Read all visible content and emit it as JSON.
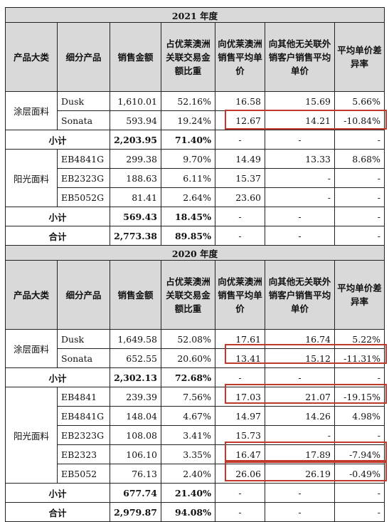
{
  "headers": {
    "category": "产品大类",
    "subproduct": "细分产品",
    "sales": "销售金额",
    "share": "占优莱澳洲关联交易金额比重",
    "related_price": "向优莱澳洲销售平均单价",
    "other_price": "向其他无关联外销客户销售平均单价",
    "diff": "平均单价差异率"
  },
  "y2021": {
    "year": "2021 年度",
    "coated": {
      "name": "涂层面料",
      "rows": [
        {
          "product": "Dusk",
          "sales": "1,610.01",
          "share": "52.16%",
          "related": "16.58",
          "other": "15.69",
          "diff": "5.66%"
        },
        {
          "product": "Sonata",
          "sales": "593.94",
          "share": "19.24%",
          "related": "12.67",
          "other": "14.21",
          "diff": "-10.84%"
        }
      ]
    },
    "sub1": {
      "label": "小计",
      "sales": "2,203.95",
      "share": "71.40%",
      "related": "-",
      "other": "-",
      "diff": "-"
    },
    "sunshade": {
      "name": "阳光面料",
      "rows": [
        {
          "product": "EB4841G",
          "sales": "299.38",
          "share": "9.70%",
          "related": "14.49",
          "other": "13.33",
          "diff": "8.68%"
        },
        {
          "product": "EB2323G",
          "sales": "188.63",
          "share": "6.11%",
          "related": "15.37",
          "other": "-",
          "diff": "-"
        },
        {
          "product": "EB5052G",
          "sales": "81.41",
          "share": "2.64%",
          "related": "23.60",
          "other": "-",
          "diff": "-"
        }
      ]
    },
    "sub2": {
      "label": "小计",
      "sales": "569.43",
      "share": "18.45%",
      "related": "-",
      "other": "-",
      "diff": "-"
    },
    "total": {
      "label": "合计",
      "sales": "2,773.38",
      "share": "89.85%",
      "related": "-",
      "other": "-",
      "diff": "-"
    }
  },
  "y2020": {
    "year": "2020 年度",
    "coated": {
      "name": "涂层面料",
      "rows": [
        {
          "product": "Dusk",
          "sales": "1,649.58",
          "share": "52.08%",
          "related": "17.61",
          "other": "16.74",
          "diff": "5.22%"
        },
        {
          "product": "Sonata",
          "sales": "652.55",
          "share": "20.60%",
          "related": "13.41",
          "other": "15.12",
          "diff": "-11.31%"
        }
      ]
    },
    "sub1": {
      "label": "小计",
      "sales": "2,302.13",
      "share": "72.68%",
      "related": "-",
      "other": "-",
      "diff": "-"
    },
    "sunshade": {
      "name": "阳光面料",
      "rows": [
        {
          "product": "EB4841",
          "sales": "239.39",
          "share": "7.56%",
          "related": "17.03",
          "other": "21.07",
          "diff": "-19.15%"
        },
        {
          "product": "EB4841G",
          "sales": "148.04",
          "share": "4.67%",
          "related": "14.97",
          "other": "14.26",
          "diff": "4.98%"
        },
        {
          "product": "EB2323G",
          "sales": "108.08",
          "share": "3.41%",
          "related": "15.73",
          "other": "-",
          "diff": "-"
        },
        {
          "product": "EB2323",
          "sales": "106.10",
          "share": "3.35%",
          "related": "16.47",
          "other": "17.89",
          "diff": "-7.94%"
        },
        {
          "product": "EB5052",
          "sales": "76.13",
          "share": "2.40%",
          "related": "26.06",
          "other": "26.19",
          "diff": "-0.49%"
        }
      ]
    },
    "sub2": {
      "label": "小计",
      "sales": "677.74",
      "share": "21.40%",
      "related": "-",
      "other": "-",
      "diff": "-"
    },
    "total": {
      "label": "合计",
      "sales": "2,979.87",
      "share": "94.08%",
      "related": "-",
      "other": "-",
      "diff": "-"
    }
  }
}
